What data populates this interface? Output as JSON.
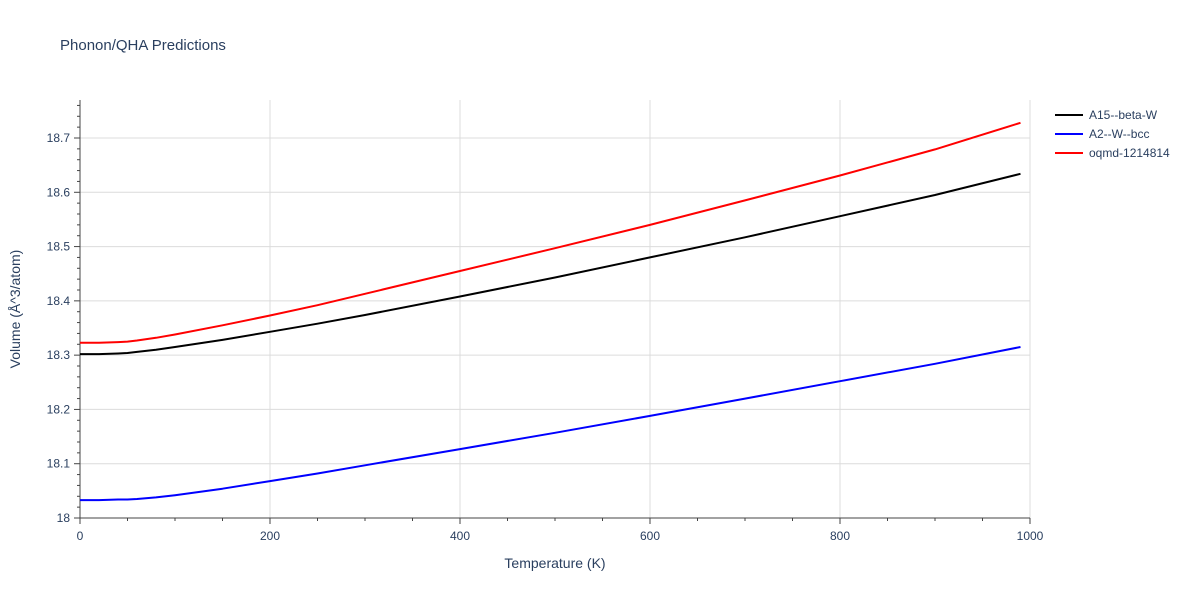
{
  "chart_data": {
    "type": "line",
    "title": "Phonon/QHA Predictions",
    "xlabel": "Temperature (K)",
    "ylabel": "Volume (Å^3/atom)",
    "xlim": [
      0,
      1000
    ],
    "ylim": [
      18.0,
      18.77
    ],
    "xticks": [
      0,
      200,
      400,
      600,
      800,
      1000
    ],
    "xtick_labels": [
      "0",
      "200",
      "400",
      "600",
      "800",
      "1000"
    ],
    "yticks": [
      18.0,
      18.1,
      18.2,
      18.3,
      18.4,
      18.5,
      18.6,
      18.7
    ],
    "ytick_labels": [
      "18",
      "18.1",
      "18.2",
      "18.3",
      "18.4",
      "18.5",
      "18.6",
      "18.7"
    ],
    "grid": true,
    "legend_position": "top-right",
    "series": [
      {
        "name": "A15--beta-W",
        "color": "#000000",
        "x": [
          0,
          20,
          40,
          50,
          60,
          80,
          100,
          150,
          200,
          250,
          300,
          400,
          500,
          600,
          700,
          800,
          900,
          990
        ],
        "y": [
          18.302,
          18.302,
          18.303,
          18.304,
          18.306,
          18.31,
          18.315,
          18.328,
          18.343,
          18.358,
          18.374,
          18.408,
          18.443,
          18.48,
          18.517,
          18.556,
          18.595,
          18.634
        ]
      },
      {
        "name": "A2--W--bcc",
        "color": "#0000ff",
        "x": [
          0,
          20,
          40,
          50,
          60,
          80,
          100,
          150,
          200,
          250,
          300,
          400,
          500,
          600,
          700,
          800,
          900,
          990
        ],
        "y": [
          18.033,
          18.033,
          18.034,
          18.034,
          18.035,
          18.038,
          18.042,
          18.054,
          18.068,
          18.082,
          18.097,
          18.127,
          18.157,
          18.188,
          18.22,
          18.252,
          18.284,
          18.315
        ]
      },
      {
        "name": "oqmd-1214814",
        "color": "#ff0000",
        "x": [
          0,
          20,
          40,
          50,
          60,
          80,
          100,
          150,
          200,
          250,
          300,
          400,
          500,
          600,
          700,
          800,
          900,
          990
        ],
        "y": [
          18.323,
          18.323,
          18.324,
          18.325,
          18.327,
          18.332,
          18.338,
          18.355,
          18.373,
          18.392,
          18.413,
          18.455,
          18.497,
          18.54,
          18.585,
          18.631,
          18.679,
          18.728
        ]
      }
    ]
  }
}
